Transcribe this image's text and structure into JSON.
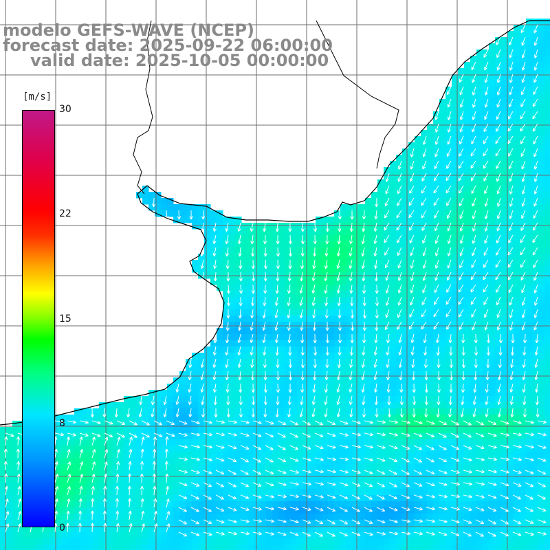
{
  "header": {
    "line1": "modelo GEFS-WAVE (NCEP)",
    "line2": "forecast date: 2025-09-22 06:00:00",
    "line3": "valid date: 2025-10-05 00:00:00"
  },
  "colorbar": {
    "unit": "[m/s]",
    "ticks": [
      "30",
      "22",
      "15",
      "8",
      "0"
    ],
    "range": [
      0,
      30
    ]
  },
  "map": {
    "ocean_field": "wind speed",
    "land_color": "#ffffff",
    "grid_color": "#6e6e6e",
    "vector_color": "#ffffff",
    "coast_color": "#000000"
  }
}
